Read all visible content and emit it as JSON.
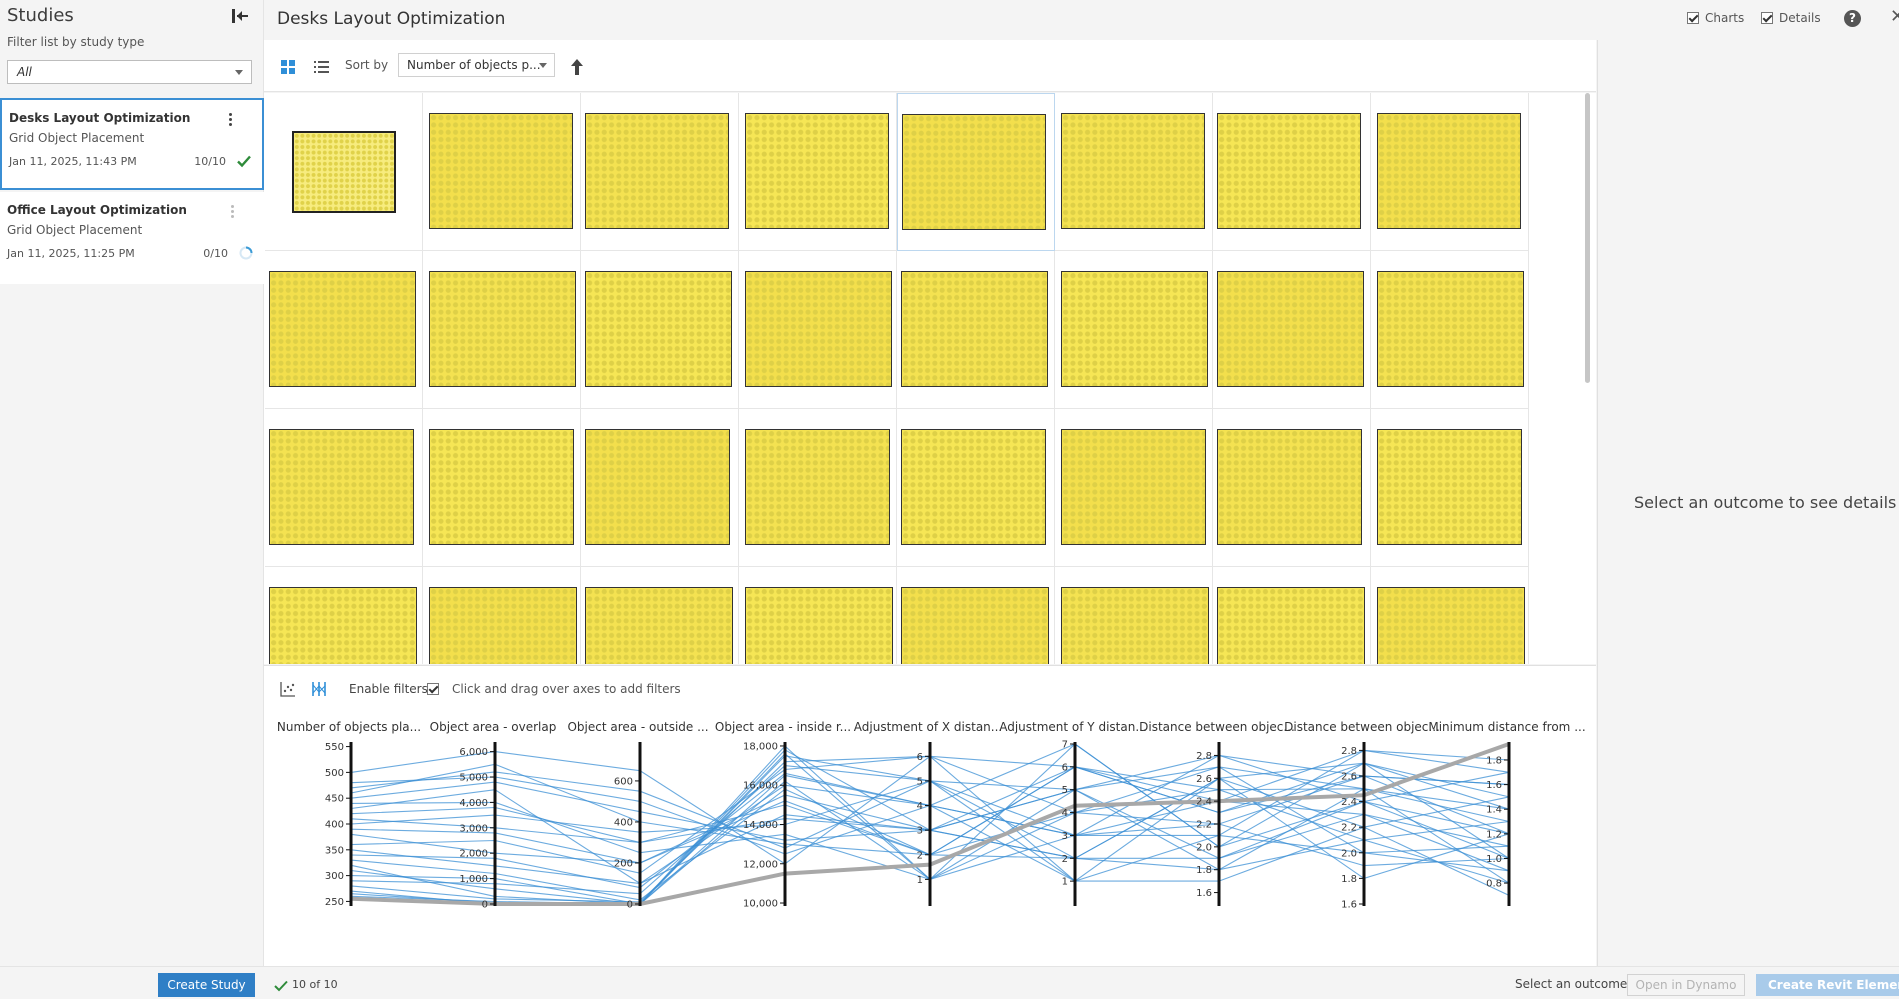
{
  "sidebar": {
    "title": "Studies",
    "filter_label": "Filter list by study type",
    "filter_value": "All",
    "studies": [
      {
        "name": "Desks Layout Optimization",
        "type": "Grid Object Placement",
        "date": "Jan 11, 2025, 11:43 PM",
        "count": "10/10",
        "status": "complete"
      },
      {
        "name": "Office Layout Optimization",
        "type": "Grid Object Placement",
        "date": "Jan 11, 2025, 11:25 PM",
        "count": "0/10",
        "status": "in-progress"
      }
    ]
  },
  "header": {
    "study_title": "Desks Layout Optimization",
    "charts_label": "Charts",
    "charts_checked": true,
    "details_label": "Details",
    "details_checked": true,
    "help_glyph": "?",
    "close_glyph": "✕"
  },
  "toolbar": {
    "sort_label": "Sort by",
    "sort_value": "Number of objects p...",
    "sort_direction": "ascending"
  },
  "gallery": {
    "rows_visible": 4,
    "columns": 8,
    "accent_color": "#f4e251"
  },
  "charts": {
    "enable_filters_label": "Enable filters",
    "enable_filters_checked": true,
    "hint": "Click and drag over axes to add filters"
  },
  "chart_data": {
    "type": "parallel_coordinates",
    "axes": [
      {
        "label": "Number of objects pla...",
        "range": [
          245,
          555
        ],
        "ticks": [
          "550",
          "500",
          "450",
          "400",
          "350",
          "300",
          "250"
        ],
        "tick_values": [
          550,
          500,
          450,
          400,
          350,
          300,
          250
        ]
      },
      {
        "label": "Object area - overlap",
        "range": [
          0,
          6300
        ],
        "ticks": [
          "6,000",
          "5,000",
          "4,000",
          "3,000",
          "2,000",
          "1,000",
          "0"
        ],
        "tick_values": [
          6000,
          5000,
          4000,
          3000,
          2000,
          1000,
          0
        ]
      },
      {
        "label": "Object area - outside ...",
        "range": [
          0,
          780
        ],
        "ticks": [
          "600",
          "400",
          "200",
          "0"
        ],
        "tick_values": [
          600,
          400,
          200,
          0
        ]
      },
      {
        "label": "Object area - inside r...",
        "range": [
          9950,
          18100
        ],
        "ticks": [
          "18,000",
          "16,000",
          "14,000",
          "12,000",
          "10,000"
        ],
        "tick_values": [
          18000,
          16000,
          14000,
          12000,
          10000
        ]
      },
      {
        "label": "Adjustment of X distan...",
        "range": [
          0,
          6.5
        ],
        "ticks": [
          "6",
          "5",
          "4",
          "3",
          "2",
          "1"
        ],
        "tick_values": [
          6,
          5,
          4,
          3,
          2,
          1
        ]
      },
      {
        "label": "Adjustment of Y distan...",
        "range": [
          0,
          7
        ],
        "ticks": [
          "7",
          "6",
          "5",
          "4",
          "3",
          "2",
          "1"
        ],
        "tick_values": [
          7,
          6,
          5,
          4,
          3,
          2,
          1
        ]
      },
      {
        "label": "Distance between objec...",
        "range": [
          1.5,
          2.9
        ],
        "ticks": [
          "2.8",
          "2.6",
          "2.4",
          "2.2",
          "2.0",
          "1.8",
          "1.6"
        ],
        "tick_values": [
          2.8,
          2.6,
          2.4,
          2.2,
          2.0,
          1.8,
          1.6
        ]
      },
      {
        "label": "Distance between objec...",
        "range": [
          1.6,
          2.85
        ],
        "ticks": [
          "2.8",
          "2.6",
          "2.4",
          "2.2",
          "2.0",
          "1.8",
          "1.6"
        ],
        "tick_values": [
          2.8,
          2.6,
          2.4,
          2.2,
          2.0,
          1.8,
          1.6
        ]
      },
      {
        "label": "Minimum distance from ...",
        "range": [
          0.63,
          1.93
        ],
        "ticks": [
          "1.8",
          "1.6",
          "1.4",
          "1.2",
          "1.0",
          "0.8"
        ],
        "tick_values": [
          1.8,
          1.6,
          1.4,
          1.2,
          1.0,
          0.8
        ]
      }
    ],
    "highlight_series": {
      "values": [
        255,
        0,
        0,
        11500,
        1.6,
        4.3,
        2.4,
        2.45,
        1.93
      ]
    },
    "series": [
      {
        "values": [
          430,
          4500,
          100,
          16000,
          4,
          3,
          2.2,
          2.6,
          1.2
        ]
      },
      {
        "values": [
          300,
          1000,
          0,
          17500,
          5,
          2,
          2.6,
          2.2,
          1.5
        ]
      },
      {
        "values": [
          380,
          2000,
          200,
          15500,
          3,
          5,
          1.9,
          2.4,
          1.0
        ]
      },
      {
        "values": [
          460,
          5500,
          400,
          13000,
          2,
          6,
          2.3,
          2.7,
          1.4
        ]
      },
      {
        "values": [
          320,
          300,
          0,
          18000,
          1,
          4,
          2.7,
          2.0,
          0.9
        ]
      },
      {
        "values": [
          500,
          6000,
          650,
          12000,
          6,
          1,
          2.1,
          2.8,
          1.7
        ]
      },
      {
        "values": [
          270,
          0,
          0,
          16500,
          4,
          3,
          2.4,
          2.3,
          1.1
        ]
      },
      {
        "values": [
          350,
          1500,
          100,
          14500,
          3,
          6,
          2.5,
          2.5,
          1.3
        ]
      },
      {
        "values": [
          410,
          3000,
          300,
          15000,
          2,
          2,
          1.8,
          2.1,
          0.8
        ]
      },
      {
        "values": [
          290,
          800,
          50,
          17000,
          5,
          5,
          2.8,
          2.6,
          1.6
        ]
      },
      {
        "values": [
          440,
          4000,
          250,
          13500,
          1,
          7,
          2.0,
          2.4,
          1.2
        ]
      },
      {
        "values": [
          360,
          2500,
          150,
          16800,
          6,
          4,
          2.2,
          1.9,
          1.0
        ]
      },
      {
        "values": [
          260,
          100,
          0,
          17800,
          3,
          2,
          2.6,
          2.7,
          1.5
        ]
      },
      {
        "values": [
          480,
          5000,
          500,
          12500,
          4,
          1,
          1.7,
          2.2,
          0.7
        ]
      },
      {
        "values": [
          330,
          1200,
          20,
          15800,
          2,
          6,
          2.4,
          2.8,
          1.8
        ]
      },
      {
        "values": [
          400,
          3500,
          350,
          14000,
          5,
          3,
          2.1,
          2.0,
          1.1
        ]
      },
      {
        "values": [
          310,
          600,
          0,
          16200,
          1,
          5,
          2.7,
          2.5,
          1.4
        ]
      },
      {
        "values": [
          450,
          4800,
          450,
          13200,
          3,
          2,
          1.9,
          2.3,
          0.9
        ]
      },
      {
        "values": [
          280,
          200,
          10,
          17200,
          6,
          6,
          2.3,
          2.6,
          1.6
        ]
      },
      {
        "values": [
          390,
          2800,
          200,
          15200,
          2,
          4,
          2.5,
          2.1,
          1.3
        ]
      },
      {
        "values": [
          340,
          1800,
          80,
          16600,
          4,
          7,
          2.0,
          2.7,
          1.0
        ]
      },
      {
        "values": [
          470,
          5200,
          550,
          12800,
          5,
          1,
          2.6,
          1.8,
          1.2
        ]
      },
      {
        "values": [
          265,
          50,
          0,
          17600,
          1,
          3,
          2.8,
          2.4,
          1.7
        ]
      },
      {
        "values": [
          420,
          3800,
          300,
          14300,
          3,
          5,
          1.8,
          2.5,
          0.8
        ]
      }
    ]
  },
  "details": {
    "empty_message": "Select an outcome to see details"
  },
  "footer": {
    "create_study": "Create Study",
    "progress": "10 of 10",
    "select_outcome": "Select an outcome",
    "open_dynamo": "Open in Dynamo",
    "create_revit": "Create Revit Elements"
  },
  "colors": {
    "accent_blue": "#2f7fc6",
    "line_blue": "#3b8fd4",
    "highlight_gray": "#a8a8a8",
    "check_green": "#2e8b3a"
  }
}
